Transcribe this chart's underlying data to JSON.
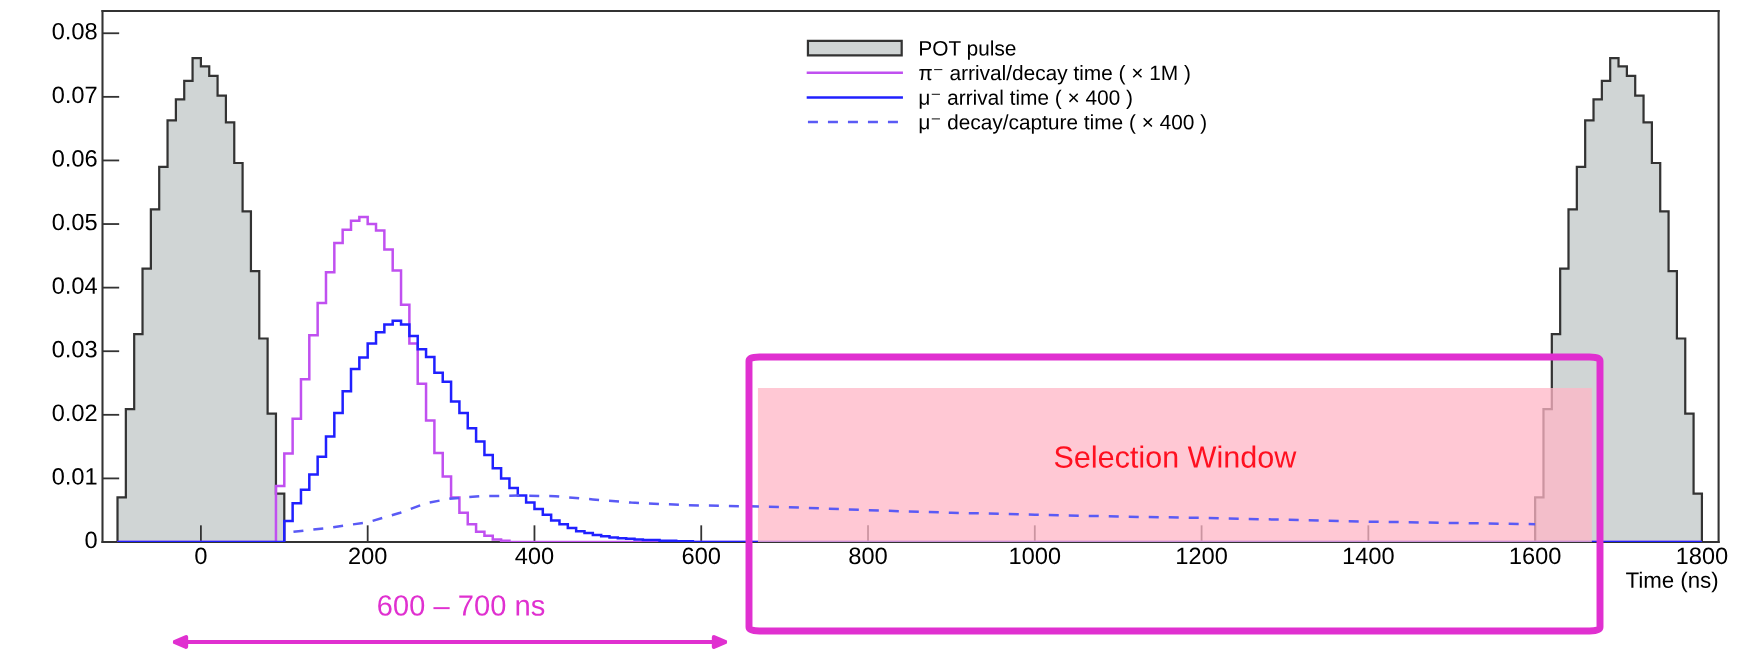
{
  "chart_data": {
    "type": "histogram",
    "xlabel": "Time (ns)",
    "xlim": [
      -118,
      1820
    ],
    "xticks": [
      0,
      200,
      400,
      600,
      800,
      1000,
      1200,
      1400,
      1600,
      1800
    ],
    "ylim": [
      0,
      0.0835
    ],
    "yticks": [
      0,
      0.01,
      0.02,
      0.03,
      0.04,
      0.05,
      0.06,
      0.07,
      0.08
    ],
    "grid": false,
    "legend": "top",
    "bins": [
      -100,
      -90,
      -80,
      -70,
      -60,
      -50,
      -40,
      -30,
      -20,
      -10,
      0,
      10,
      20,
      30,
      40,
      50,
      60,
      70,
      80,
      90,
      100,
      110,
      120,
      130,
      140,
      150,
      160,
      170,
      180,
      190,
      200,
      210,
      220,
      230,
      240,
      250,
      260,
      270,
      280,
      290,
      300,
      310,
      320,
      330,
      340,
      350,
      360,
      370,
      380,
      390,
      400,
      410,
      420,
      430,
      440,
      450,
      460,
      470,
      480,
      490,
      500,
      510,
      520,
      530,
      540,
      550,
      560,
      570,
      580,
      590,
      1600,
      1610,
      1620,
      1630,
      1640,
      1650,
      1660,
      1670,
      1680,
      1690,
      1700,
      1710,
      1720,
      1730,
      1740,
      1750,
      1760,
      1770,
      1780,
      1790,
      1800
    ],
    "series": [
      {
        "name": "POT pulse",
        "color": "#d0d5d5",
        "values": [
          0.007,
          0.0209,
          0.0327,
          0.043,
          0.0523,
          0.059,
          0.0663,
          0.0696,
          0.0725,
          0.0761,
          0.0748,
          0.0733,
          0.0702,
          0.066,
          0.0596,
          0.052,
          0.0426,
          0.032,
          0.0202,
          0.0076,
          0,
          0,
          0,
          0,
          0,
          0,
          0,
          0,
          0,
          0,
          0,
          0,
          0,
          0,
          0,
          0,
          0,
          0,
          0,
          0,
          0,
          0,
          0,
          0,
          0,
          0,
          0,
          0,
          0,
          0,
          0,
          0,
          0,
          0,
          0,
          0,
          0,
          0,
          0,
          0,
          0,
          0,
          0,
          0,
          0,
          0,
          0,
          0,
          0,
          0,
          0.007,
          0.0209,
          0.0327,
          0.043,
          0.0523,
          0.059,
          0.0663,
          0.0696,
          0.0725,
          0.0761,
          0.0748,
          0.0733,
          0.0702,
          0.066,
          0.0596,
          0.052,
          0.0426,
          0.032,
          0.0202,
          0.0076
        ]
      },
      {
        "name": "π⁻ arrival/decay time ( × 1M )",
        "color": "#c050f0",
        "values": [
          0,
          0,
          0,
          0,
          0,
          0,
          0,
          0,
          0,
          0,
          0,
          0,
          0,
          0,
          0,
          0,
          0,
          0,
          0,
          0.0088,
          0.0139,
          0.0194,
          0.0256,
          0.0325,
          0.0376,
          0.0424,
          0.047,
          0.0491,
          0.0505,
          0.0511,
          0.05,
          0.049,
          0.046,
          0.0427,
          0.0373,
          0.0312,
          0.0249,
          0.0191,
          0.014,
          0.0103,
          0.007,
          0.0046,
          0.0028,
          0.0016,
          0.001,
          0.0004,
          0.0002,
          0,
          0,
          0,
          0,
          0,
          0,
          0,
          0,
          0,
          0,
          0,
          0,
          0,
          0,
          0,
          0,
          0,
          0,
          0,
          0,
          0,
          0,
          0,
          0,
          0,
          0,
          0,
          0,
          0,
          0,
          0,
          0,
          0,
          0,
          0,
          0,
          0,
          0,
          0,
          0,
          0,
          0,
          0
        ]
      },
      {
        "name": "μ⁻ arrival time ( × 400 )",
        "color": "#2020ff",
        "values": [
          0,
          0,
          0,
          0,
          0,
          0,
          0,
          0,
          0,
          0,
          0,
          0,
          0,
          0,
          0,
          0,
          0,
          0,
          0,
          0,
          0.0033,
          0.0061,
          0.0082,
          0.0106,
          0.0134,
          0.0166,
          0.0203,
          0.0237,
          0.0272,
          0.029,
          0.0312,
          0.033,
          0.0342,
          0.0348,
          0.0342,
          0.0324,
          0.0303,
          0.0291,
          0.0266,
          0.0252,
          0.0221,
          0.0203,
          0.0179,
          0.0158,
          0.0137,
          0.0116,
          0.01,
          0.0085,
          0.0073,
          0.0062,
          0.0052,
          0.0043,
          0.0034,
          0.0028,
          0.0022,
          0.0017,
          0.0014,
          0.0011,
          0.0009,
          0.0007,
          0.0006,
          0.0005,
          0.0004,
          0.0003,
          0.0003,
          0.0002,
          0.0002,
          0.0001,
          0.0001,
          0,
          0,
          0,
          0,
          0,
          0,
          0,
          0,
          0,
          0,
          0,
          0,
          0,
          0,
          0,
          0,
          0,
          0,
          0,
          0,
          0
        ]
      },
      {
        "name": "μ⁻ decay/capture time ( × 400 )",
        "type": "line",
        "line_style": "dashed",
        "color": "#5a5af5",
        "x": [
          111,
          152,
          200,
          239,
          270,
          298,
          334,
          380,
          425,
          470,
          516,
          580,
          700,
          800,
          900,
          1000,
          1100,
          1200,
          1300,
          1400,
          1500,
          1600
        ],
        "values": [
          0.0016,
          0.0022,
          0.0031,
          0.0046,
          0.0061,
          0.0068,
          0.0072,
          0.0073,
          0.0072,
          0.0067,
          0.0062,
          0.0058,
          0.0055,
          0.005,
          0.0046,
          0.0043,
          0.004,
          0.0038,
          0.0035,
          0.0032,
          0.003,
          0.0028
        ]
      }
    ],
    "bands": [
      {
        "axis": "x",
        "from": 668,
        "to": 1668,
        "label": "Selection Window",
        "color": "#ffb6c6"
      }
    ],
    "annotations": [
      "600 – 700 ns"
    ]
  }
}
